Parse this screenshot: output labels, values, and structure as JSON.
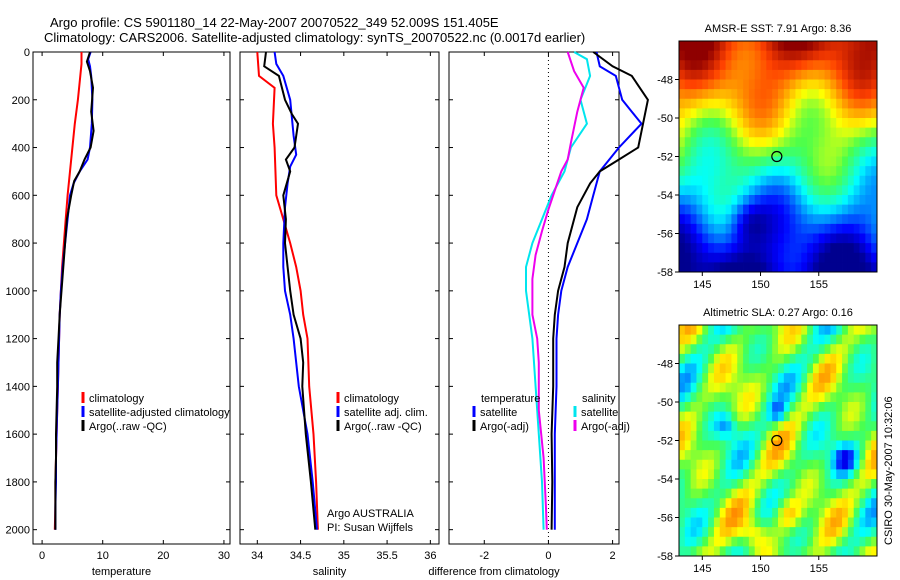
{
  "header": {
    "title_line1": "Argo profile: CS 5901180_14 22-May-2007 20070522_349 52.009S 151.405E",
    "title_line2": "Climatology: CARS2006. Satellite-adjusted climatology: synTS_20070522.nc (0.0017d earlier)"
  },
  "footer": {
    "stamp": "CSIRO 30-May-2007 10:32:06"
  },
  "colors": {
    "climatology": "#ff0000",
    "satellite": "#0000ff",
    "argo": "#000000",
    "sat_salinity": "#00e5ee",
    "argo_salinity_adj": "#ee00ee"
  },
  "chart_data": [
    {
      "type": "line",
      "xlabel": "temperature",
      "xlim": [
        -1.5,
        31
      ],
      "xticks": [
        0,
        10,
        20,
        30
      ],
      "ylim": [
        2060,
        0
      ],
      "yticks": [
        0,
        200,
        400,
        600,
        800,
        1000,
        1200,
        1400,
        1600,
        1800,
        2000
      ],
      "legend": [
        "climatology",
        "satellite-adjusted climatology",
        "Argo(..raw -QC)"
      ],
      "series": [
        {
          "name": "climatology",
          "color": "#ff0000",
          "points": [
            [
              6.5,
              0
            ],
            [
              6.5,
              50
            ],
            [
              6.3,
              100
            ],
            [
              5.9,
              200
            ],
            [
              5.4,
              300
            ],
            [
              5.0,
              400
            ],
            [
              4.6,
              500
            ],
            [
              4.2,
              600
            ],
            [
              3.9,
              700
            ],
            [
              3.6,
              800
            ],
            [
              3.3,
              900
            ],
            [
              3.1,
              1000
            ],
            [
              2.9,
              1100
            ],
            [
              2.8,
              1200
            ],
            [
              2.7,
              1300
            ],
            [
              2.6,
              1400
            ],
            [
              2.5,
              1500
            ],
            [
              2.4,
              1600
            ],
            [
              2.3,
              1700
            ],
            [
              2.2,
              1800
            ],
            [
              2.2,
              1900
            ],
            [
              2.1,
              2000
            ]
          ]
        },
        {
          "name": "satellite-adjusted climatology",
          "color": "#0000ff",
          "points": [
            [
              8.0,
              0
            ],
            [
              7.6,
              30
            ],
            [
              7.9,
              60
            ],
            [
              8.1,
              100
            ],
            [
              8.3,
              200
            ],
            [
              8.2,
              300
            ],
            [
              7.9,
              400
            ],
            [
              7.5,
              450
            ],
            [
              6.2,
              500
            ],
            [
              5.2,
              550
            ],
            [
              4.6,
              600
            ],
            [
              4.2,
              700
            ],
            [
              3.8,
              800
            ],
            [
              3.4,
              900
            ],
            [
              3.1,
              1000
            ],
            [
              2.9,
              1100
            ],
            [
              2.8,
              1200
            ],
            [
              2.7,
              1300
            ],
            [
              2.6,
              1400
            ],
            [
              2.5,
              1500
            ],
            [
              2.4,
              1600
            ],
            [
              2.3,
              1700
            ],
            [
              2.3,
              1800
            ],
            [
              2.2,
              1900
            ],
            [
              2.2,
              2000
            ]
          ]
        },
        {
          "name": "Argo(..raw -QC)",
          "color": "#000000",
          "points": [
            [
              7.9,
              0
            ],
            [
              7.4,
              40
            ],
            [
              7.9,
              80
            ],
            [
              8.4,
              150
            ],
            [
              8.1,
              250
            ],
            [
              8.5,
              330
            ],
            [
              8.0,
              400
            ],
            [
              7.0,
              450
            ],
            [
              6.2,
              500
            ],
            [
              5.3,
              540
            ],
            [
              4.8,
              600
            ],
            [
              4.1,
              700
            ],
            [
              3.8,
              800
            ],
            [
              3.5,
              900
            ],
            [
              3.2,
              1000
            ],
            [
              2.9,
              1100
            ],
            [
              2.7,
              1200
            ],
            [
              2.5,
              1300
            ],
            [
              2.5,
              1400
            ],
            [
              2.4,
              1500
            ],
            [
              2.3,
              1600
            ],
            [
              2.3,
              1700
            ],
            [
              2.2,
              1800
            ],
            [
              2.2,
              1900
            ],
            [
              2.2,
              2000
            ]
          ]
        }
      ]
    },
    {
      "type": "line",
      "xlabel": "salinity",
      "xlim": [
        33.8,
        36.1
      ],
      "xticks": [
        34,
        34.5,
        35,
        35.5,
        36
      ],
      "ylim": [
        2060,
        0
      ],
      "legend": [
        "climatology",
        "satellite adj. clim.",
        "Argo(..raw -QC)"
      ],
      "annotation": [
        "Argo AUSTRALIA",
        "PI: Susan Wijffels"
      ],
      "series": [
        {
          "name": "climatology",
          "color": "#ff0000",
          "points": [
            [
              34.0,
              0
            ],
            [
              34.02,
              100
            ],
            [
              34.2,
              150
            ],
            [
              34.18,
              300
            ],
            [
              34.2,
              400
            ],
            [
              34.22,
              600
            ],
            [
              34.3,
              700
            ],
            [
              34.38,
              800
            ],
            [
              34.45,
              900
            ],
            [
              34.5,
              1000
            ],
            [
              34.53,
              1100
            ],
            [
              34.58,
              1200
            ],
            [
              34.6,
              1400
            ],
            [
              34.65,
              1600
            ],
            [
              34.68,
              1800
            ],
            [
              34.7,
              2000
            ]
          ]
        },
        {
          "name": "satellite adj. clim.",
          "color": "#0000ff",
          "points": [
            [
              34.2,
              0
            ],
            [
              34.22,
              50
            ],
            [
              34.3,
              100
            ],
            [
              34.38,
              200
            ],
            [
              34.42,
              350
            ],
            [
              34.45,
              430
            ],
            [
              34.38,
              480
            ],
            [
              34.35,
              550
            ],
            [
              34.32,
              650
            ],
            [
              34.3,
              800
            ],
            [
              34.3,
              900
            ],
            [
              34.32,
              1000
            ],
            [
              34.38,
              1100
            ],
            [
              34.42,
              1200
            ],
            [
              34.48,
              1400
            ],
            [
              34.58,
              1600
            ],
            [
              34.64,
              1800
            ],
            [
              34.69,
              2000
            ]
          ]
        },
        {
          "name": "Argo(..raw -QC)",
          "color": "#000000",
          "points": [
            [
              34.1,
              0
            ],
            [
              34.08,
              60
            ],
            [
              34.25,
              100
            ],
            [
              34.32,
              200
            ],
            [
              34.4,
              260
            ],
            [
              34.47,
              300
            ],
            [
              34.43,
              400
            ],
            [
              34.33,
              450
            ],
            [
              34.38,
              500
            ],
            [
              34.3,
              600
            ],
            [
              34.33,
              700
            ],
            [
              34.32,
              800
            ],
            [
              34.35,
              900
            ],
            [
              34.38,
              1000
            ],
            [
              34.42,
              1100
            ],
            [
              34.5,
              1200
            ],
            [
              34.53,
              1300
            ],
            [
              34.52,
              1400
            ],
            [
              34.56,
              1600
            ],
            [
              34.62,
              1800
            ],
            [
              34.67,
              2000
            ]
          ]
        }
      ]
    },
    {
      "type": "line",
      "xlabel": "difference from climatology",
      "xlim": [
        -3.1,
        2.2
      ],
      "xticks": [
        -2,
        0,
        2
      ],
      "ylim": [
        2060,
        0
      ],
      "legend_left": {
        "heading": "temperature",
        "items": [
          "satellite",
          "Argo(-adj)"
        ]
      },
      "legend_right": {
        "heading": "salinity",
        "items": [
          "satellite",
          "Argo(-adj)"
        ]
      },
      "series": [
        {
          "name": "temperature satellite",
          "color": "#0000ff",
          "points": [
            [
              1.5,
              0
            ],
            [
              1.6,
              60
            ],
            [
              2.1,
              100
            ],
            [
              2.3,
              200
            ],
            [
              2.6,
              250
            ],
            [
              2.9,
              300
            ],
            [
              2.2,
              400
            ],
            [
              1.6,
              500
            ],
            [
              1.4,
              600
            ],
            [
              1.2,
              700
            ],
            [
              0.9,
              800
            ],
            [
              0.6,
              900
            ],
            [
              0.4,
              1000
            ],
            [
              0.3,
              1100
            ],
            [
              0.25,
              1200
            ],
            [
              0.25,
              1400
            ],
            [
              0.2,
              1600
            ],
            [
              0.2,
              1800
            ],
            [
              0.2,
              2000
            ]
          ]
        },
        {
          "name": "temperature Argo(-adj)",
          "color": "#000000",
          "points": [
            [
              1.4,
              0
            ],
            [
              2.0,
              60
            ],
            [
              2.6,
              100
            ],
            [
              3.1,
              200
            ],
            [
              2.8,
              400
            ],
            [
              2.2,
              450
            ],
            [
              1.6,
              500
            ],
            [
              1.3,
              550
            ],
            [
              0.9,
              650
            ],
            [
              0.6,
              800
            ],
            [
              0.5,
              900
            ],
            [
              0.3,
              1000
            ],
            [
              0.2,
              1100
            ],
            [
              0.15,
              1200
            ],
            [
              0.15,
              1400
            ],
            [
              0.1,
              1600
            ],
            [
              0.12,
              1800
            ],
            [
              0.1,
              2000
            ]
          ]
        },
        {
          "name": "salinity satellite",
          "color": "#00e5ee",
          "points": [
            [
              0.8,
              0
            ],
            [
              1.2,
              30
            ],
            [
              1.3,
              100
            ],
            [
              1.0,
              200
            ],
            [
              1.2,
              300
            ],
            [
              0.7,
              400
            ],
            [
              0.5,
              500
            ],
            [
              0.1,
              600
            ],
            [
              -0.2,
              700
            ],
            [
              -0.5,
              800
            ],
            [
              -0.7,
              900
            ],
            [
              -0.7,
              1000
            ],
            [
              -0.6,
              1100
            ],
            [
              -0.5,
              1200
            ],
            [
              -0.4,
              1400
            ],
            [
              -0.3,
              1600
            ],
            [
              -0.2,
              1800
            ],
            [
              -0.15,
              2000
            ]
          ]
        },
        {
          "name": "salinity Argo(-adj)",
          "color": "#ee00ee",
          "points": [
            [
              0.6,
              0
            ],
            [
              0.8,
              80
            ],
            [
              1.1,
              150
            ],
            [
              0.9,
              250
            ],
            [
              0.7,
              380
            ],
            [
              0.6,
              450
            ],
            [
              0.4,
              500
            ],
            [
              0.2,
              580
            ],
            [
              0.0,
              660
            ],
            [
              -0.2,
              750
            ],
            [
              -0.4,
              850
            ],
            [
              -0.5,
              950
            ],
            [
              -0.5,
              1100
            ],
            [
              -0.35,
              1200
            ],
            [
              -0.3,
              1300
            ],
            [
              -0.3,
              1500
            ],
            [
              -0.15,
              1700
            ],
            [
              -0.08,
              1900
            ],
            [
              -0.05,
              2000
            ]
          ]
        }
      ]
    },
    {
      "type": "heatmap",
      "title": "AMSR-E SST: 7.91 Argo: 8.36",
      "xlim": [
        143,
        160
      ],
      "ylim": [
        -58,
        -46
      ],
      "xticks": [
        145,
        150,
        155
      ],
      "yticks": [
        -48,
        -50,
        -52,
        -54,
        -56,
        -58
      ],
      "marker": {
        "lon": 151.4,
        "lat": -52.0
      }
    },
    {
      "type": "heatmap",
      "title": "Altimetric SLA: 0.27 Argo: 0.16",
      "xlim": [
        143,
        160
      ],
      "ylim": [
        -58,
        -46
      ],
      "xticks": [
        145,
        150,
        155
      ],
      "yticks": [
        -48,
        -50,
        -52,
        -54,
        -56,
        -58
      ],
      "marker": {
        "lon": 151.4,
        "lat": -52.0
      }
    }
  ]
}
